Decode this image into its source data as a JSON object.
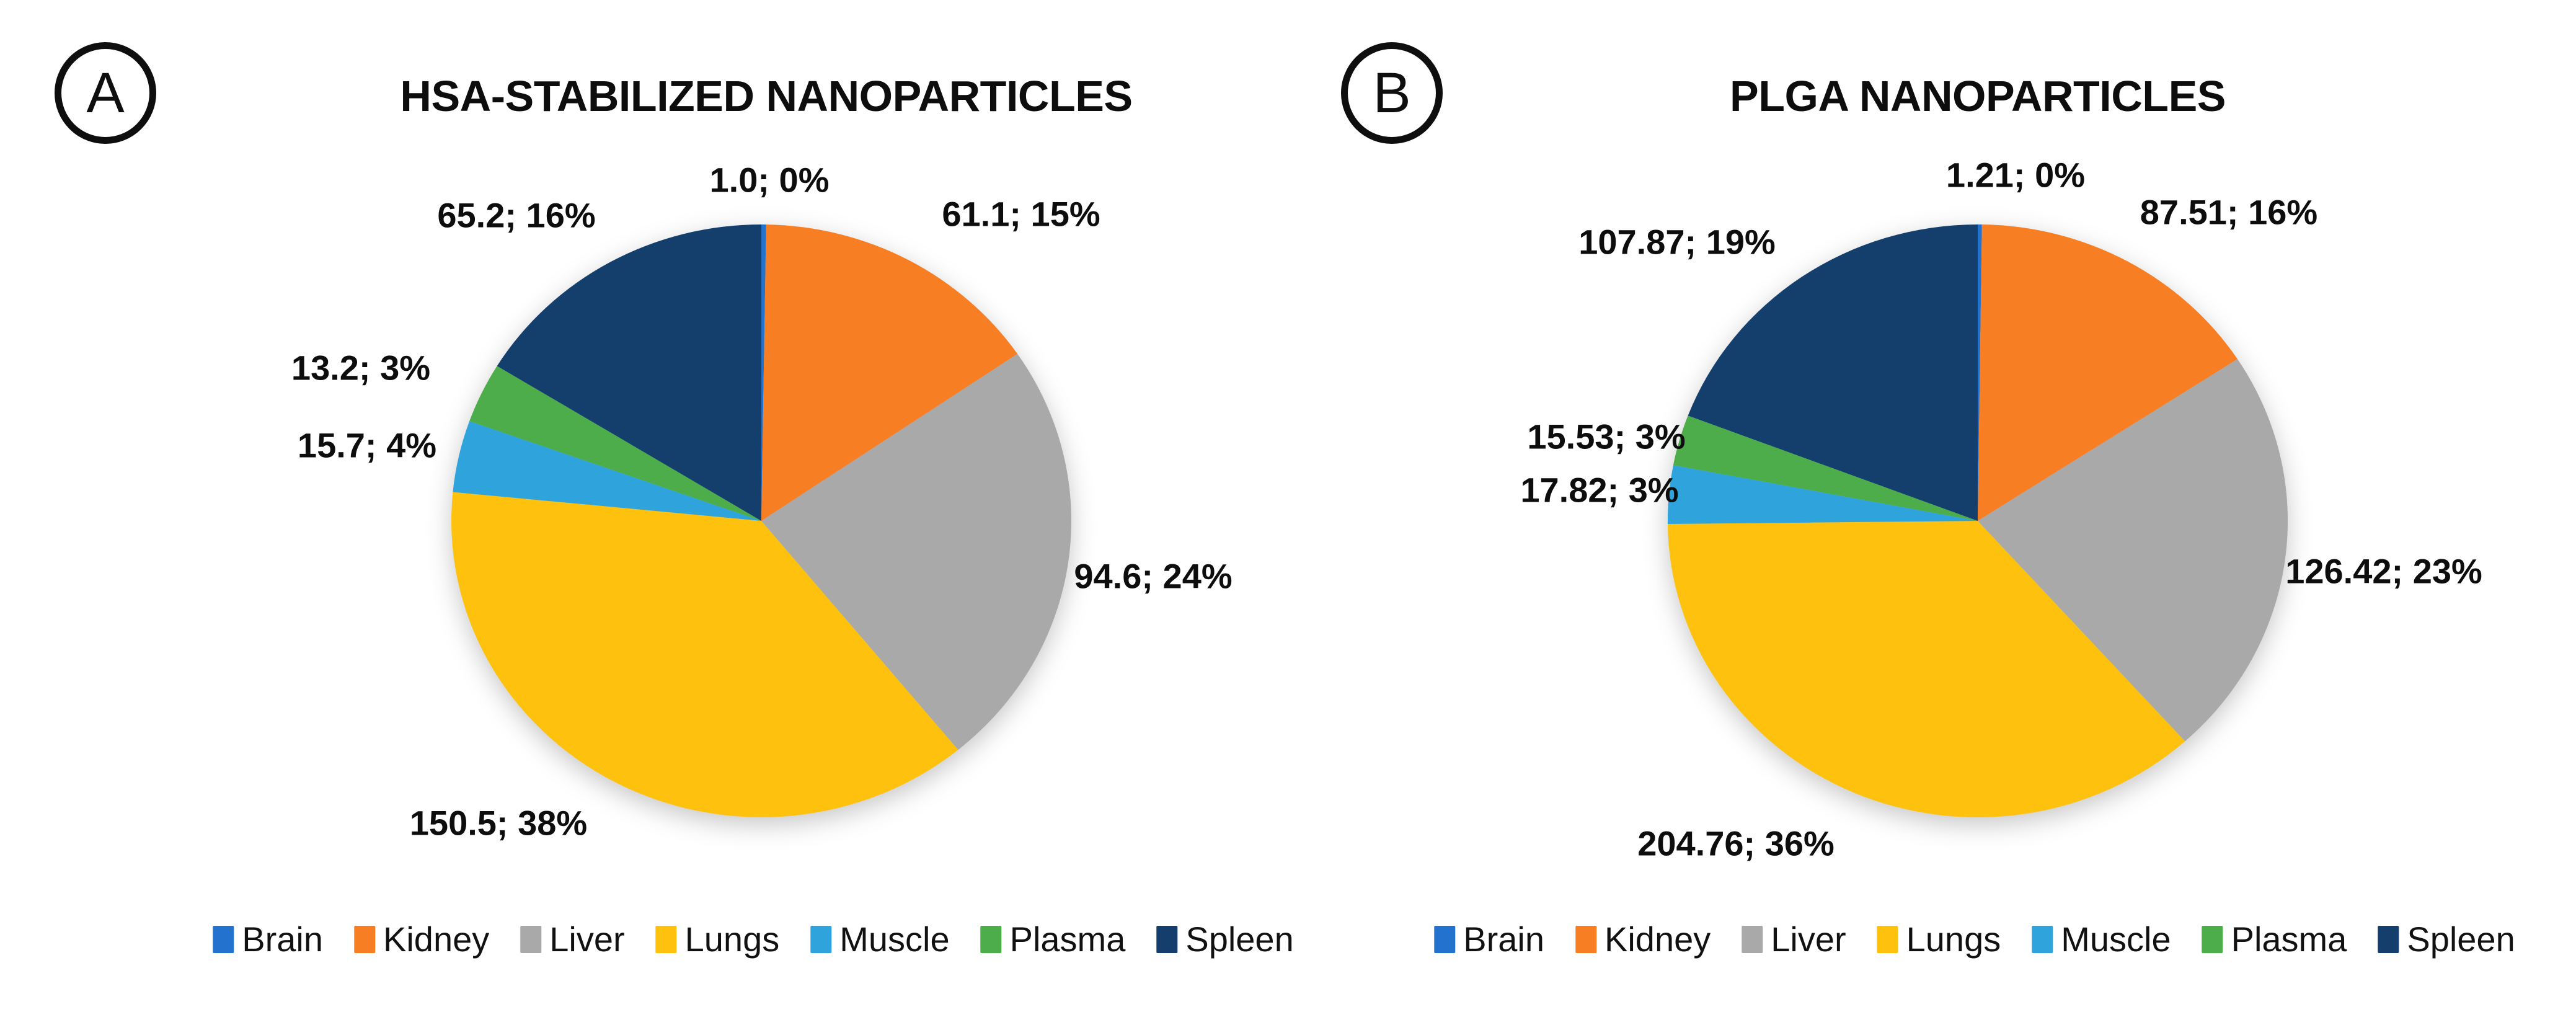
{
  "page": {
    "background": "#ffffff",
    "text_color": "#0d0d0d"
  },
  "colors": {
    "Brain": "#2272CE",
    "Kidney": "#F87E23",
    "Liver": "#A9A9A9",
    "Lungs": "#FEC10D",
    "Muscle": "#2EA3DC",
    "Plasma": "#4CAD4A",
    "Spleen": "#143F6D"
  },
  "chart_data": [
    {
      "type": "pie",
      "panel_label": "A",
      "title": "HSA-STABILIZED NANOPARTICLES",
      "categories": [
        "Brain",
        "Kidney",
        "Liver",
        "Lungs",
        "Muscle",
        "Plasma",
        "Spleen"
      ],
      "values": [
        1.0,
        61.1,
        94.6,
        150.5,
        15.7,
        13.2,
        65.2
      ],
      "percents": [
        "0%",
        "15%",
        "24%",
        "38%",
        "4%",
        "3%",
        "16%"
      ],
      "slice_labels": [
        "1.0; 0%",
        "61.1; 15%",
        "94.6; 24%",
        "150.5; 38%",
        "15.7; 4%",
        "13.2; 3%",
        "65.2; 16%"
      ],
      "start_angle": "12-oclock",
      "direction": "clockwise",
      "label_format": "value; percent",
      "legend_position": "bottom"
    },
    {
      "type": "pie",
      "panel_label": "B",
      "title": "PLGA NANOPARTICLES",
      "categories": [
        "Brain",
        "Kidney",
        "Liver",
        "Lungs",
        "Muscle",
        "Plasma",
        "Spleen"
      ],
      "values": [
        1.21,
        87.51,
        126.42,
        204.76,
        17.82,
        15.53,
        107.87
      ],
      "percents": [
        "0%",
        "16%",
        "23%",
        "36%",
        "3%",
        "3%",
        "19%"
      ],
      "slice_labels": [
        "1.21; 0%",
        "87.51; 16%",
        "126.42; 23%",
        "204.76; 36%",
        "17.82; 3%",
        "15.53; 3%",
        "107.87; 19%"
      ],
      "start_angle": "12-oclock",
      "direction": "clockwise",
      "label_format": "value; percent",
      "legend_position": "bottom"
    }
  ]
}
